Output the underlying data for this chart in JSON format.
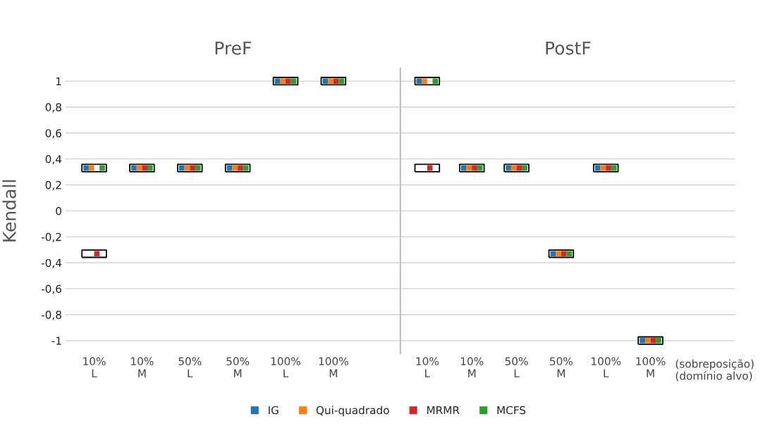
{
  "chart_data": [
    {
      "type": "scatter",
      "title": "PreF",
      "ylabel": "Kendall",
      "categories": [
        "10%\nL",
        "10%\nM",
        "50%\nL",
        "50%\nM",
        "100%\nL",
        "100%\nM"
      ],
      "series": [
        {
          "name": "IG",
          "color": "#1f77b4",
          "values": [
            0.33,
            0.33,
            0.33,
            0.33,
            1,
            1
          ]
        },
        {
          "name": "Qui-quadrado",
          "color": "#ff7f0e",
          "values": [
            0.33,
            0.33,
            0.33,
            0.33,
            1,
            1
          ]
        },
        {
          "name": "MRMR",
          "color": "#d62728",
          "values": [
            -0.33,
            0.33,
            0.33,
            0.33,
            1,
            1
          ]
        },
        {
          "name": "MCFS",
          "color": "#2ca02c",
          "values": [
            0.33,
            0.33,
            0.33,
            0.33,
            1,
            1
          ]
        }
      ],
      "ylim": [
        -1.1,
        1.1
      ],
      "yticks": [
        1,
        {
          "value": 0.8,
          "label": "0,8"
        },
        {
          "value": 0.6,
          "label": "0,6"
        },
        {
          "value": 0.4,
          "label": "0,4"
        },
        {
          "value": 0.2,
          "label": "0,2"
        },
        0,
        {
          "value": -0.2,
          "label": "-0,2"
        },
        {
          "value": -0.4,
          "label": "-0,4"
        },
        {
          "value": -0.6,
          "label": "-0,6"
        },
        {
          "value": -0.8,
          "label": "-0,8"
        },
        -1
      ],
      "grid": "y",
      "marker": "square",
      "legend": "bottom"
    },
    {
      "type": "scatter",
      "title": "PostF",
      "xlabel": "(sobreposição)\n(domínio alvo)",
      "categories": [
        "10%\nL",
        "10%\nM",
        "50%\nL",
        "50%\nM",
        "100%\nL",
        "100%\nM"
      ],
      "series": [
        {
          "color": "#1f77b4",
          "values": [
            1,
            0.33,
            0.33,
            -0.33,
            0.33,
            -1
          ]
        },
        {
          "color": "#ff7f0e",
          "values": [
            1,
            0.33,
            0.33,
            -0.33,
            0.33,
            -1
          ]
        },
        {
          "color": "#d62728",
          "values": [
            0.33,
            0.33,
            0.33,
            -0.33,
            0.33,
            -1
          ]
        },
        {
          "color": "#2ca02c",
          "values": [
            1,
            0.33,
            0.33,
            -0.33,
            0.33,
            -1
          ]
        }
      ],
      "ylim": [
        -1.1,
        1.1
      ],
      "yticks": [
        {
          "value": 1,
          "label": null
        },
        {
          "value": 0.8,
          "label": null
        },
        {
          "value": 0.6,
          "label": null
        },
        {
          "value": 0.4,
          "label": null
        },
        {
          "value": 0.2,
          "label": null
        },
        {
          "value": 0,
          "label": null
        },
        {
          "value": -0.2,
          "label": null
        },
        {
          "value": -0.4,
          "label": null
        },
        {
          "value": -0.6,
          "label": null
        },
        {
          "value": -0.8,
          "label": null
        },
        {
          "value": -1,
          "label": null
        }
      ],
      "tick_labels": "x",
      "grid": "y",
      "marker": "square"
    }
  ]
}
